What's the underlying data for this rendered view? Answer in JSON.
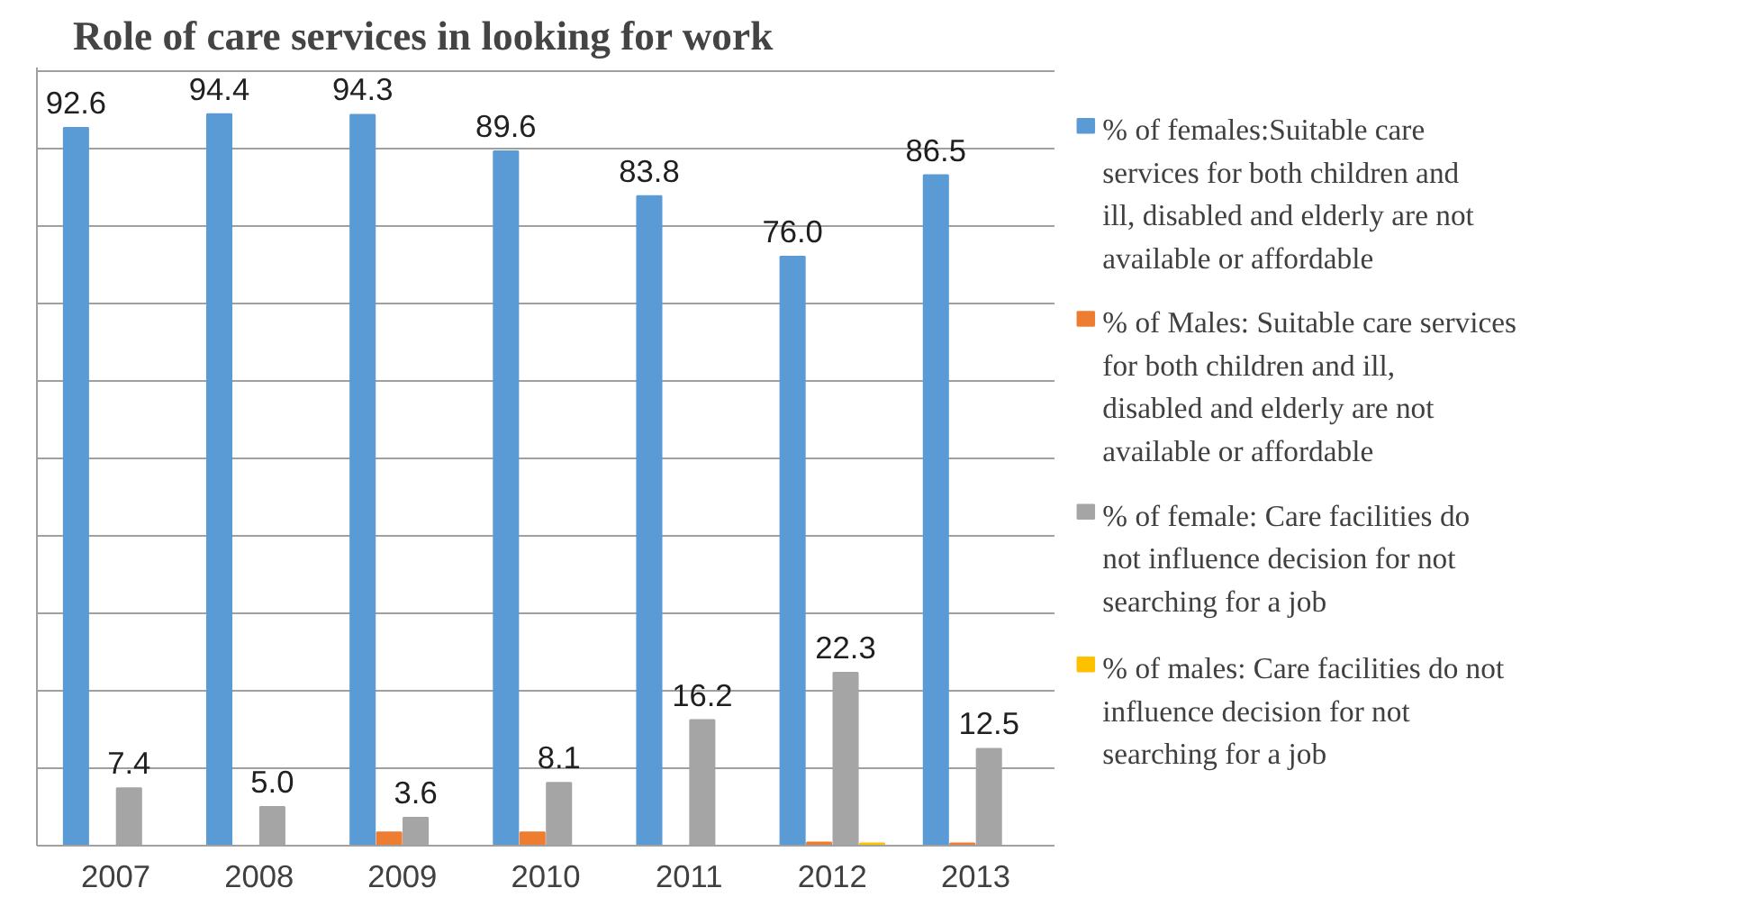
{
  "chart_data": {
    "type": "bar",
    "title": "Role of care services in looking for work",
    "categories": [
      "2007",
      "2008",
      "2009",
      "2010",
      "2011",
      "2012",
      "2013"
    ],
    "series": [
      {
        "name": "% of females:Suitable care services for both children and ill, disabled and elderly are not available or affordable",
        "color": "#5b9bd5",
        "values": [
          92.6,
          94.4,
          94.3,
          89.6,
          83.8,
          76.0,
          86.5
        ],
        "value_labels": [
          "92.6",
          "94.4",
          "94.3",
          "89.6",
          "83.8",
          "76.0",
          "86.5"
        ]
      },
      {
        "name": "% of Males: Suitable care services for both children and ill, disabled and elderly are not available or affordable",
        "color": "#ed7d31",
        "values": [
          0,
          0,
          1.7,
          1.7,
          0,
          0.4,
          0.3
        ]
      },
      {
        "name": "% of female: Care facilities do not influence decision for not searching for a job",
        "color": "#a5a5a5",
        "values": [
          7.4,
          5.0,
          3.6,
          8.1,
          16.2,
          22.3,
          12.5
        ],
        "value_labels": [
          "7.4",
          "5.0",
          "3.6",
          "8.1",
          "16.2",
          "22.3",
          "12.5"
        ]
      },
      {
        "name": "% of males: Care facilities do not influence decision for not searching for a job",
        "color": "#ffc000",
        "values": [
          0,
          0,
          0,
          0,
          0,
          0.3,
          0
        ]
      }
    ],
    "ylim": [
      0,
      100
    ],
    "yticks": [
      0,
      10,
      20,
      30,
      40,
      50,
      60,
      70,
      80,
      90,
      100
    ],
    "tick_labels": "x",
    "grid": "y",
    "legend": "right"
  }
}
